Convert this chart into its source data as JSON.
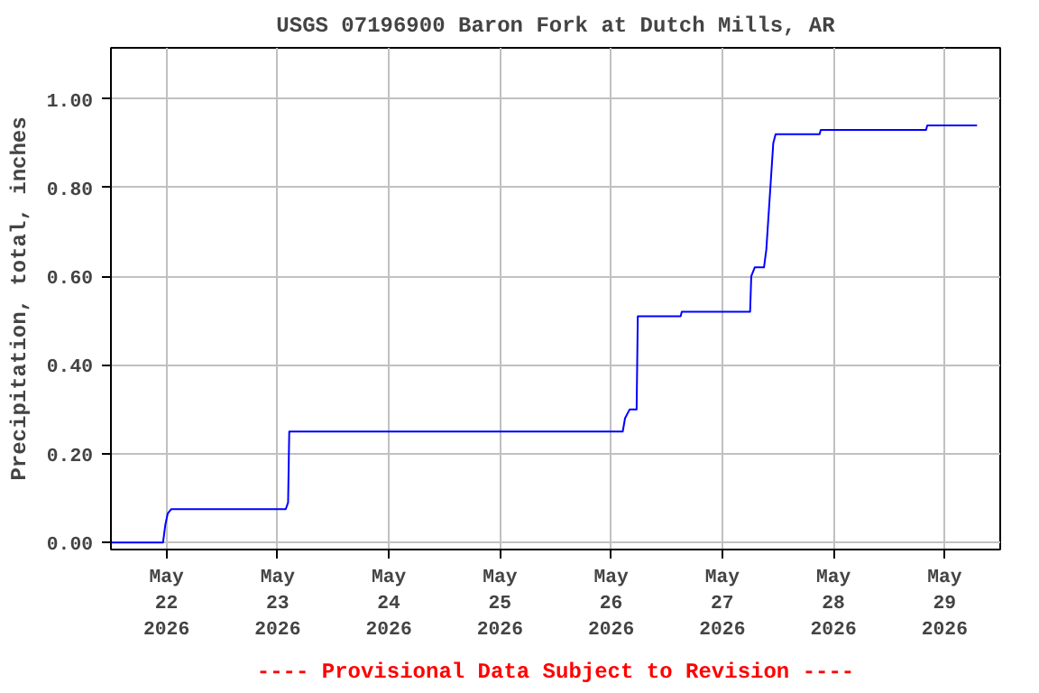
{
  "chart_data": {
    "type": "line",
    "title": "USGS 07196900 Baron Fork at Dutch Mills, AR",
    "ylabel": "Precipitation, total, inches",
    "annotations": [
      "---- Provisional Data Subject to Revision ----"
    ],
    "xlim": [
      "2026-05-21T12:00",
      "2026-05-29T12:00"
    ],
    "xticks": [
      {
        "value": "2026-05-22",
        "label": "May\n22\n2026"
      },
      {
        "value": "2026-05-23",
        "label": "May\n23\n2026"
      },
      {
        "value": "2026-05-24",
        "label": "May\n24\n2026"
      },
      {
        "value": "2026-05-25",
        "label": "May\n25\n2026"
      },
      {
        "value": "2026-05-26",
        "label": "May\n26\n2026"
      },
      {
        "value": "2026-05-27",
        "label": "May\n27\n2026"
      },
      {
        "value": "2026-05-28",
        "label": "May\n28\n2026"
      },
      {
        "value": "2026-05-29",
        "label": "May\n29\n2026"
      }
    ],
    "ylim": [
      -0.016,
      1.115
    ],
    "yticks": [
      {
        "value": 0,
        "label": "0.00"
      },
      {
        "value": 0.2,
        "label": "0.20"
      },
      {
        "value": 0.4,
        "label": "0.40"
      },
      {
        "value": 0.6,
        "label": "0.60"
      },
      {
        "value": 0.8,
        "label": "0.80"
      },
      {
        "value": 1.0,
        "label": "1.00"
      }
    ],
    "grid": true,
    "series": [
      {
        "color": "#0000ff",
        "x": [
          "2026-05-21T12:00",
          "2026-05-21T23:15",
          "2026-05-21T23:45",
          "2026-05-22T00:15",
          "2026-05-22T01:00",
          "2026-05-23T01:45",
          "2026-05-23T02:15",
          "2026-05-23T02:30",
          "2026-05-26T02:30",
          "2026-05-26T03:00",
          "2026-05-26T04:00",
          "2026-05-26T05:30",
          "2026-05-26T05:45",
          "2026-05-26T15:00",
          "2026-05-26T15:15",
          "2026-05-27T06:00",
          "2026-05-27T06:15",
          "2026-05-27T07:00",
          "2026-05-27T09:00",
          "2026-05-27T09:30",
          "2026-05-27T11:00",
          "2026-05-27T11:30",
          "2026-05-27T21:00",
          "2026-05-27T21:15",
          "2026-05-28T20:00",
          "2026-05-28T20:15",
          "2026-05-29T07:00"
        ],
        "values": [
          0,
          0,
          0.04,
          0.065,
          0.075,
          0.075,
          0.09,
          0.25,
          0.25,
          0.28,
          0.3,
          0.3,
          0.51,
          0.51,
          0.52,
          0.52,
          0.6,
          0.62,
          0.62,
          0.66,
          0.9,
          0.92,
          0.92,
          0.93,
          0.93,
          0.94,
          0.94
        ]
      }
    ]
  }
}
